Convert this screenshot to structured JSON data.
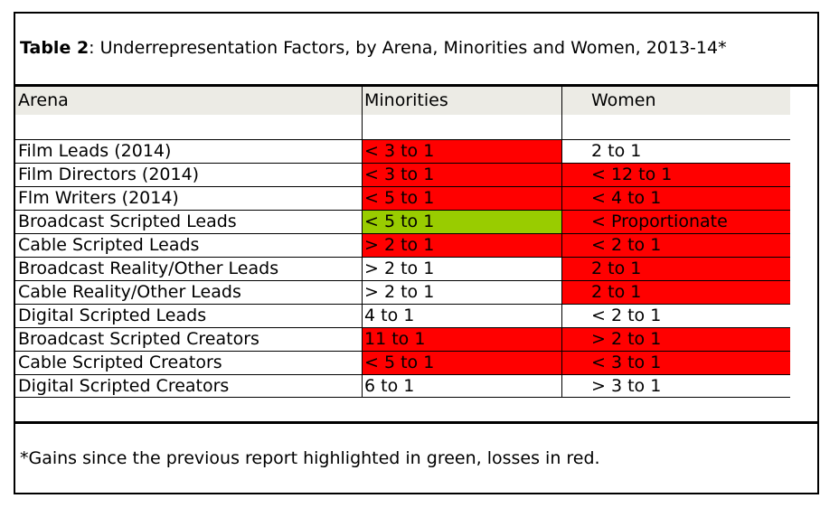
{
  "title": {
    "label": "Table 2",
    "text": ":  Underrepresentation Factors, by Arena, Minorities and Women, 2013-14*"
  },
  "columns": [
    "Arena",
    "Minorities",
    "Women"
  ],
  "rows": [
    {
      "arena": "Film Leads (2014)",
      "minorities": "< 3 to 1",
      "women": "2 to 1",
      "m_status": "red",
      "w_status": "none"
    },
    {
      "arena": "Film Directors (2014)",
      "minorities": "< 3 to 1",
      "women": "< 12 to 1",
      "m_status": "red",
      "w_status": "red"
    },
    {
      "arena": "Flm Writers (2014)",
      "minorities": "< 5 to 1",
      "women": "< 4 to 1",
      "m_status": "red",
      "w_status": "red"
    },
    {
      "arena": "Broadcast Scripted Leads",
      "minorities": "< 5 to 1",
      "women": "< Proportionate",
      "m_status": "green",
      "w_status": "red"
    },
    {
      "arena": "Cable Scripted Leads",
      "minorities": "> 2 to 1",
      "women": "< 2 to 1",
      "m_status": "red",
      "w_status": "red"
    },
    {
      "arena": "Broadcast Reality/Other Leads",
      "minorities": "> 2 to 1",
      "women": "2 to 1",
      "m_status": "none",
      "w_status": "red"
    },
    {
      "arena": "Cable Reality/Other Leads",
      "minorities": "> 2 to 1",
      "women": "2 to 1",
      "m_status": "none",
      "w_status": "red"
    },
    {
      "arena": "Digital Scripted Leads",
      "minorities": "4 to 1",
      "women": "< 2 to 1",
      "m_status": "none",
      "w_status": "none"
    },
    {
      "arena": "Broadcast Scripted Creators",
      "minorities": "11 to 1",
      "women": "> 2 to 1",
      "m_status": "red",
      "w_status": "red"
    },
    {
      "arena": "Cable Scripted Creators",
      "minorities": "< 5 to 1",
      "women": "< 3 to 1",
      "m_status": "red",
      "w_status": "red"
    },
    {
      "arena": "Digital Scripted Creators",
      "minorities": "6 to 1",
      "women": "> 3 to 1",
      "m_status": "none",
      "w_status": "none"
    }
  ],
  "colors": {
    "loss": "#ff0000",
    "gain": "#99cc00",
    "header_bg": "#ecebe5"
  },
  "footnote": "*Gains since the previous report highlighted in green, losses in red."
}
